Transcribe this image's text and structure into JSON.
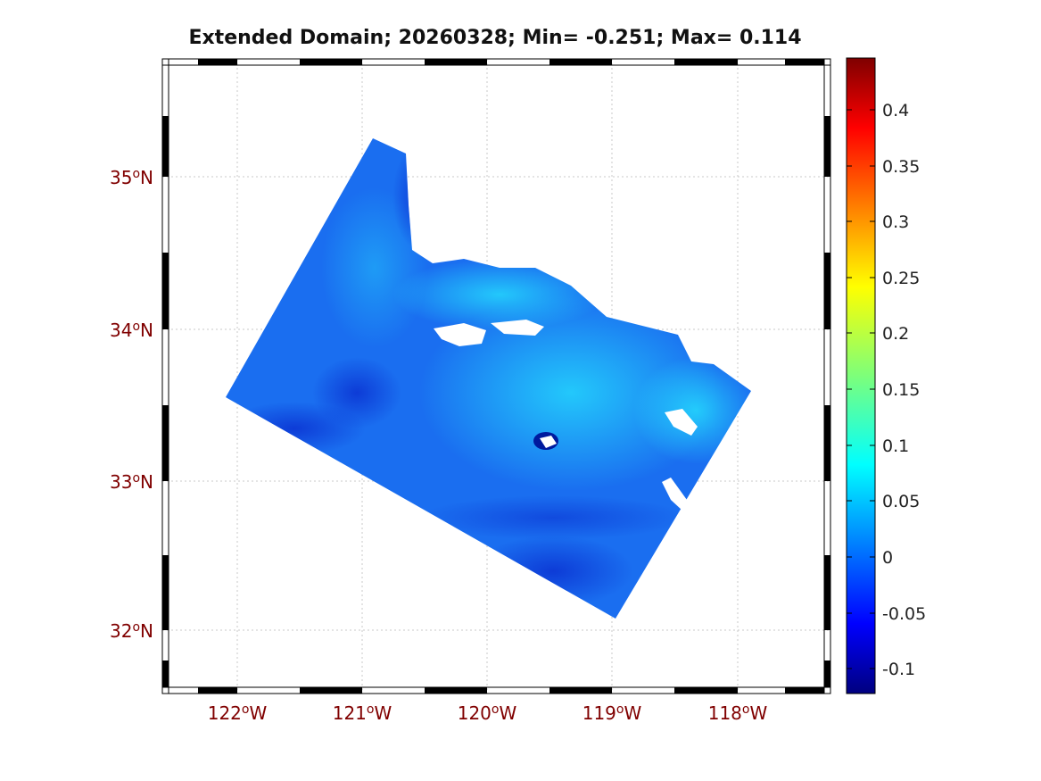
{
  "title": "Extended Domain; 20260328; Min= -0.251; Max= 0.114",
  "map": {
    "lat_labels": [
      {
        "deg": "35",
        "sup": "o",
        "hemi": "N"
      },
      {
        "deg": "34",
        "sup": "o",
        "hemi": "N"
      },
      {
        "deg": "33",
        "sup": "o",
        "hemi": "N"
      },
      {
        "deg": "32",
        "sup": "o",
        "hemi": "N"
      }
    ],
    "lon_labels": [
      {
        "deg": "122",
        "sup": "o",
        "hemi": "W"
      },
      {
        "deg": "121",
        "sup": "o",
        "hemi": "W"
      },
      {
        "deg": "120",
        "sup": "o",
        "hemi": "W"
      },
      {
        "deg": "119",
        "sup": "o",
        "hemi": "W"
      },
      {
        "deg": "118",
        "sup": "o",
        "hemi": "W"
      }
    ],
    "field_color": "#1a6ef0",
    "land_color": "#ffffff",
    "grid": true
  },
  "colorbar": {
    "labels": [
      "0.4",
      "0.35",
      "0.3",
      "0.25",
      "0.2",
      "0.15",
      "0.1",
      "0.05",
      "0",
      "-0.05",
      "-0.1"
    ],
    "colormap": "jet",
    "range": [
      -0.125,
      0.445
    ]
  }
}
